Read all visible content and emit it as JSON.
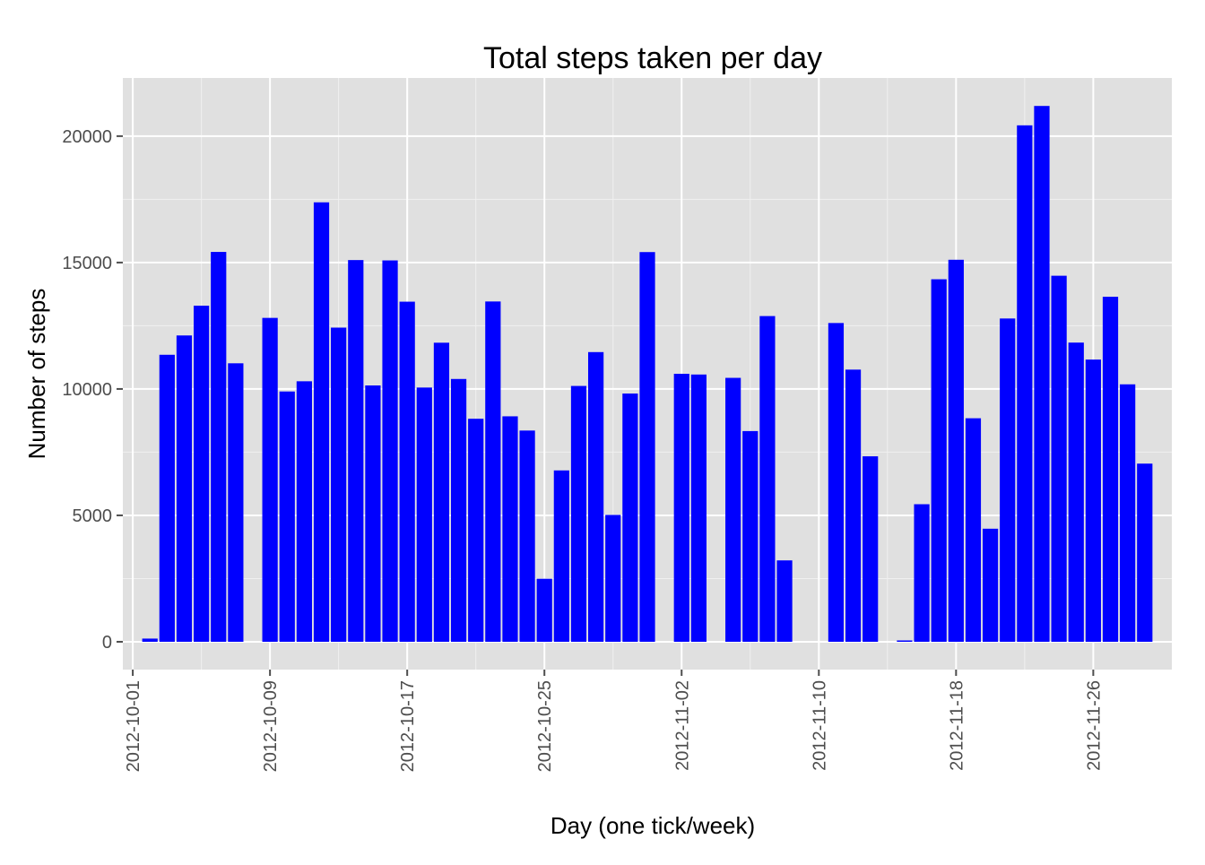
{
  "chart_data": {
    "type": "bar",
    "title": "Total steps taken per day",
    "xlabel": "Day (one tick/week)",
    "ylabel": "Number of steps",
    "x": [
      "2012-10-01",
      "2012-10-02",
      "2012-10-03",
      "2012-10-04",
      "2012-10-05",
      "2012-10-06",
      "2012-10-07",
      "2012-10-08",
      "2012-10-09",
      "2012-10-10",
      "2012-10-11",
      "2012-10-12",
      "2012-10-13",
      "2012-10-14",
      "2012-10-15",
      "2012-10-16",
      "2012-10-17",
      "2012-10-18",
      "2012-10-19",
      "2012-10-20",
      "2012-10-21",
      "2012-10-22",
      "2012-10-23",
      "2012-10-24",
      "2012-10-25",
      "2012-10-26",
      "2012-10-27",
      "2012-10-28",
      "2012-10-29",
      "2012-10-30",
      "2012-10-31",
      "2012-11-01",
      "2012-11-02",
      "2012-11-03",
      "2012-11-04",
      "2012-11-05",
      "2012-11-06",
      "2012-11-07",
      "2012-11-08",
      "2012-11-09",
      "2012-11-10",
      "2012-11-11",
      "2012-11-12",
      "2012-11-13",
      "2012-11-14",
      "2012-11-15",
      "2012-11-16",
      "2012-11-17",
      "2012-11-18",
      "2012-11-19",
      "2012-11-20",
      "2012-11-21",
      "2012-11-22",
      "2012-11-23",
      "2012-11-24",
      "2012-11-25",
      "2012-11-26",
      "2012-11-27",
      "2012-11-28",
      "2012-11-29",
      "2012-11-30"
    ],
    "values": [
      0,
      126,
      11352,
      12116,
      13294,
      15420,
      11015,
      0,
      12811,
      9900,
      10304,
      17382,
      12426,
      15098,
      10139,
      15084,
      13452,
      10056,
      11829,
      10395,
      8821,
      13460,
      8918,
      8355,
      2492,
      6778,
      10119,
      11458,
      5018,
      9819,
      15414,
      0,
      10600,
      10571,
      0,
      10439,
      8334,
      12883,
      3219,
      0,
      0,
      12608,
      10765,
      7336,
      0,
      41,
      5441,
      14339,
      15110,
      8841,
      4472,
      12787,
      20427,
      21194,
      14478,
      11834,
      11162,
      13646,
      10183,
      7047,
      0
    ],
    "x_ticks": [
      "2012-10-01",
      "2012-10-09",
      "2012-10-17",
      "2012-10-25",
      "2012-11-02",
      "2012-11-10",
      "2012-11-18",
      "2012-11-26"
    ],
    "y_ticks": [
      0,
      5000,
      10000,
      15000,
      20000
    ],
    "ylim": [
      -1100,
      22300
    ],
    "xlim": [
      "2012-09-30",
      "2012-11-30"
    ],
    "bar_color": "#0000FF",
    "panel_background": "#E0E0E0",
    "grid_color": "#FFFFFF",
    "grid": true,
    "legend": "none"
  }
}
